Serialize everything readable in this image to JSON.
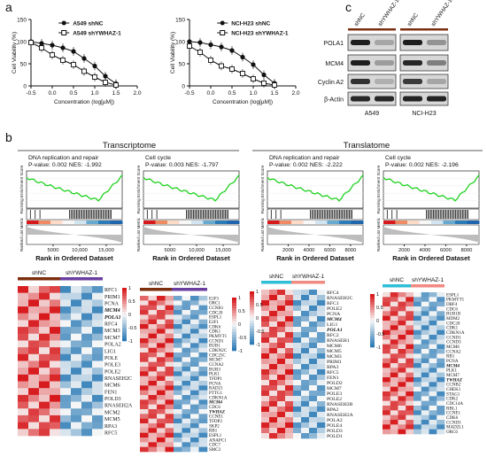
{
  "panel_labels": {
    "a": "a",
    "b": "b",
    "c": "c"
  },
  "chart_data": [
    {
      "type": "line",
      "xlabel": "Concentration (log[µM])",
      "ylabel": "Cell Viability (%)",
      "xlim": [
        -0.5,
        2.0
      ],
      "ylim": [
        0,
        150
      ],
      "xticks": [
        "-0.5",
        "0.0",
        "0.5",
        "1.0",
        "1.5",
        "2.0"
      ],
      "yticks": [
        "0",
        "50",
        "100",
        "150"
      ],
      "x": [
        -0.5,
        -0.25,
        0.0,
        0.25,
        0.5,
        0.75,
        1.0,
        1.25,
        1.5
      ],
      "series": [
        {
          "name": "A549 shNC",
          "marker": "filled-circle",
          "values": [
            100,
            96,
            92,
            86,
            78,
            62,
            45,
            22,
            5
          ]
        },
        {
          "name": "A549 shYWHAZ-1",
          "marker": "open-square",
          "values": [
            98,
            86,
            70,
            58,
            48,
            33,
            20,
            8,
            2
          ]
        }
      ]
    },
    {
      "type": "line",
      "xlabel": "Concentration (log[µM])",
      "ylabel": "Cell Viability (%)",
      "xlim": [
        -0.5,
        2.0
      ],
      "ylim": [
        0,
        150
      ],
      "xticks": [
        "-0.5",
        "0.0",
        "0.5",
        "1.0",
        "1.5",
        "2.0"
      ],
      "yticks": [
        "0",
        "50",
        "100",
        "150"
      ],
      "x": [
        -0.5,
        -0.25,
        0.0,
        0.25,
        0.5,
        0.75,
        1.0,
        1.25,
        1.5
      ],
      "series": [
        {
          "name": "NCI-H23 shNC",
          "marker": "filled-circle",
          "values": [
            100,
            98,
            93,
            88,
            80,
            65,
            48,
            25,
            6
          ]
        },
        {
          "name": "NCI-H23 shYWHAZ-1",
          "marker": "open-square",
          "values": [
            90,
            76,
            58,
            45,
            38,
            28,
            16,
            6,
            2
          ]
        }
      ]
    }
  ],
  "western": {
    "lanes": [
      "shNC",
      "shYWHAZ-1",
      "shNC",
      "shYWHAZ-1"
    ],
    "proteins": [
      "POLA1",
      "MCM4",
      "Cyclin A2",
      "β-Actin"
    ],
    "cell_lines": [
      "A549",
      "NCI-H23"
    ]
  },
  "gsea": {
    "group_titles": [
      "Transcriptome",
      "Translatome"
    ],
    "ylabel_top": "Running Enrichment Score",
    "ylabel_bottom": "Ranked List Metric",
    "xlabel": "Rank in Ordered Dataset",
    "panels": [
      {
        "title": "DNA replication and repair",
        "stats": "P-value: 0.002  NES: -1.992",
        "ticks": [
          "5000",
          "10,000",
          "15,000"
        ]
      },
      {
        "title": "Cell cycle",
        "stats": "P-value: 0.003  NES: -1.797",
        "ticks": [
          "5000",
          "10,000",
          "15,000"
        ]
      },
      {
        "title": "DNA replication and repair",
        "stats": "P-value: 0.002  NES: -2.222",
        "ticks": [
          "2000",
          "4000",
          "6000",
          "8000"
        ]
      },
      {
        "title": "Cell cycle",
        "stats": "P-value: 0.002  NES: -2.196",
        "ticks": [
          "2000",
          "4000",
          "6000",
          "8000"
        ]
      }
    ]
  },
  "heatmaps": {
    "groups": [
      "shNC",
      "shYWHAZ-1"
    ],
    "colorbar": [
      "1",
      "0.5",
      "0",
      "-0.5",
      "-1"
    ],
    "panels": [
      {
        "genes": [
          "RFC1",
          "PRIM1",
          "PCNA",
          "MCM4",
          "POLA1",
          "RFC4",
          "MCM3",
          "MCM7",
          "POLA2",
          "LIG1",
          "POLE",
          "POLE3",
          "POLE2",
          "RNASEH2C",
          "MCM6",
          "FEN1",
          "POLD3",
          "RNASEH2A",
          "MCM2",
          "MCM5",
          "RPA3",
          "RFC5"
        ],
        "highlight": [
          "MCM4",
          "POLA1"
        ]
      },
      {
        "genes": [
          "E2F3",
          "ORC1",
          "CCNB1",
          "CDC20",
          "ESPL1",
          "E2F1",
          "CDK6",
          "CDK1",
          "PKMYT1",
          "CCND1",
          "BUB1",
          "CDKN2C",
          "CDC25C",
          "MCM7",
          "CCNA2",
          "BUB3",
          "PLK1",
          "TFDP1",
          "PCNA",
          "RAD21",
          "PTTG1",
          "CDKN1A",
          "MCM4",
          "CDC6",
          "YWHAZ",
          "CCNE1",
          "TFDP2",
          "SKP2",
          "RB1",
          "ESPL1",
          "ANAPC1",
          "CDC7",
          "SMC3"
        ],
        "highlight": [
          "MCM4",
          "YWHAZ"
        ]
      },
      {
        "genes": [
          "RFC4",
          "RNASEH2C",
          "RFC1",
          "POLE2",
          "PCNA",
          "MCM4",
          "LIG1",
          "POLA1",
          "RFC2",
          "RNASEH1",
          "MCM6",
          "MCM5",
          "MCM3",
          "PRIM1",
          "RPA3",
          "RFC5",
          "FEN1",
          "POLD2",
          "MCM7",
          "POLE3",
          "POLE2",
          "RNASEH2B",
          "RPA2",
          "RNASEH2A",
          "POLA2",
          "POLE4",
          "POLD3",
          "POLD1"
        ],
        "highlight": [
          "MCM4",
          "POLA1"
        ]
      },
      {
        "genes": [
          "ESPL1",
          "PKMYT1",
          "DBF4",
          "CDC6",
          "BUB1B",
          "MDM2",
          "CDC20",
          "CDK1",
          "CDKN1A",
          "CCND1",
          "CCND3",
          "MCM6",
          "CCNA2",
          "RB1",
          "PCNA",
          "MCM4",
          "PLK1",
          "MCM7",
          "YWHAZ",
          "CCNB2",
          "CHEK1",
          "STAG1",
          "CDK2",
          "CDC14A",
          "RBL1",
          "CCNE1",
          "CDK6",
          "CCND3",
          "MAD2L1",
          "ORC6"
        ],
        "highlight": [
          "MCM4",
          "YWHAZ"
        ]
      }
    ]
  },
  "colors": {
    "nc_bar": "#2fbfd6",
    "kd_bar": "#f08a82",
    "wb_bar_nc": "#7c2e0f",
    "wb_bar_kd": "#6b3fa0",
    "heat_high": "#d7191c",
    "heat_low": "#2c7bb6",
    "gsea_curve": "#1fd11f",
    "highlight": "#d00000"
  }
}
